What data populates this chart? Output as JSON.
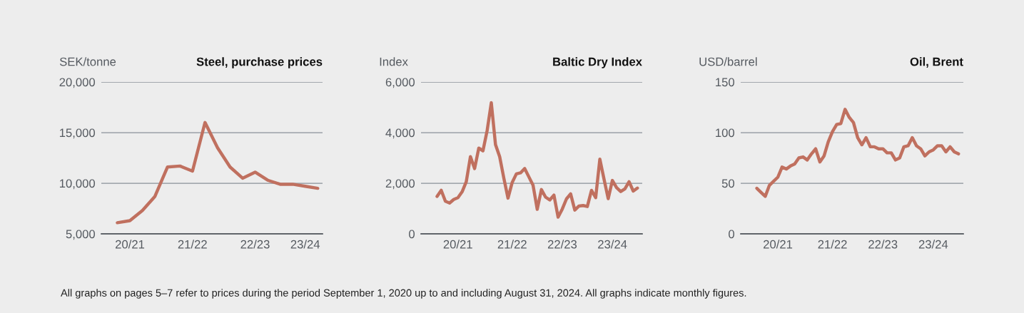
{
  "chart_data": [
    {
      "type": "line",
      "title": "Steel, purchase prices",
      "ylabel": "SEK/tonne",
      "color": "#c0705f",
      "categories": [
        null,
        "20/21",
        null,
        null,
        null,
        null,
        "21/22",
        null,
        null,
        null,
        null,
        "22/23",
        null,
        null,
        null,
        "23/24",
        null
      ],
      "values": [
        6100,
        6300,
        7300,
        8700,
        11600,
        11700,
        11200,
        16000,
        13500,
        11600,
        10500,
        11100,
        10300,
        9900,
        9900,
        9700,
        9500
      ],
      "ylim": [
        5000,
        20000
      ],
      "yticks": [
        {
          "value": 5000,
          "label": "5,000"
        },
        {
          "value": 10000,
          "label": "10,000"
        },
        {
          "value": 15000,
          "label": "15,000"
        },
        {
          "value": 20000,
          "label": "20,000"
        }
      ],
      "grid": "y",
      "annotations": [
        "All graphs on pages 5–7 refer to prices during the period September 1, 2020 up to and including August 31, 2024. All graphs indicate monthly figures."
      ]
    },
    {
      "type": "line",
      "title": "Baltic Dry Index",
      "ylabel": "Index",
      "color": "#c0705f",
      "categories": [
        null,
        null,
        null,
        null,
        null,
        "20/21",
        null,
        null,
        null,
        null,
        null,
        null,
        null,
        null,
        null,
        null,
        null,
        null,
        "21/22",
        null,
        null,
        null,
        null,
        null,
        null,
        null,
        null,
        null,
        null,
        null,
        "22/23",
        null,
        null,
        null,
        null,
        null,
        null,
        null,
        null,
        null,
        null,
        null,
        "23/24",
        null,
        null,
        null,
        null,
        null,
        null
      ],
      "values": [
        1480,
        1720,
        1290,
        1220,
        1360,
        1430,
        1660,
        2060,
        3050,
        2580,
        3390,
        3280,
        4080,
        5180,
        3530,
        3050,
        2200,
        1410,
        2030,
        2370,
        2410,
        2580,
        2250,
        1920,
        970,
        1750,
        1450,
        1340,
        1530,
        660,
        980,
        1380,
        1580,
        940,
        1100,
        1120,
        1080,
        1720,
        1430,
        2950,
        2160,
        1390,
        2110,
        1830,
        1670,
        1780,
        2060,
        1690,
        1810
      ],
      "ylim": [
        0,
        6000
      ],
      "yticks": [
        0,
        {
          "value": 2000,
          "label": "2,000"
        },
        {
          "value": 4000,
          "label": "4,000"
        },
        {
          "value": 6000,
          "label": "6,000"
        }
      ],
      "grid": "y"
    },
    {
      "type": "line",
      "title": "Oil, Brent",
      "ylabel": "USD/barrel",
      "color": "#c0705f",
      "categories": [
        null,
        null,
        null,
        null,
        null,
        "20/21",
        null,
        null,
        null,
        null,
        null,
        null,
        null,
        null,
        null,
        null,
        null,
        null,
        "21/22",
        null,
        null,
        null,
        null,
        null,
        null,
        null,
        null,
        null,
        null,
        null,
        "22/23",
        null,
        null,
        null,
        null,
        null,
        null,
        null,
        null,
        null,
        null,
        null,
        "23/24",
        null,
        null,
        null,
        null,
        null,
        null
      ],
      "values": [
        45,
        41,
        37,
        48,
        52,
        56,
        66,
        64,
        67,
        69,
        75,
        76,
        73,
        79,
        84,
        71,
        77,
        91,
        101,
        108,
        109,
        123,
        115,
        110,
        95,
        88,
        95,
        86,
        86,
        84,
        84,
        80,
        80,
        73,
        75,
        86,
        87,
        95,
        87,
        84,
        77,
        81,
        83,
        87,
        87,
        81,
        86,
        81,
        79
      ],
      "ylim": [
        0,
        150
      ],
      "yticks": [
        0,
        50,
        100,
        150
      ],
      "grid": "y"
    }
  ]
}
